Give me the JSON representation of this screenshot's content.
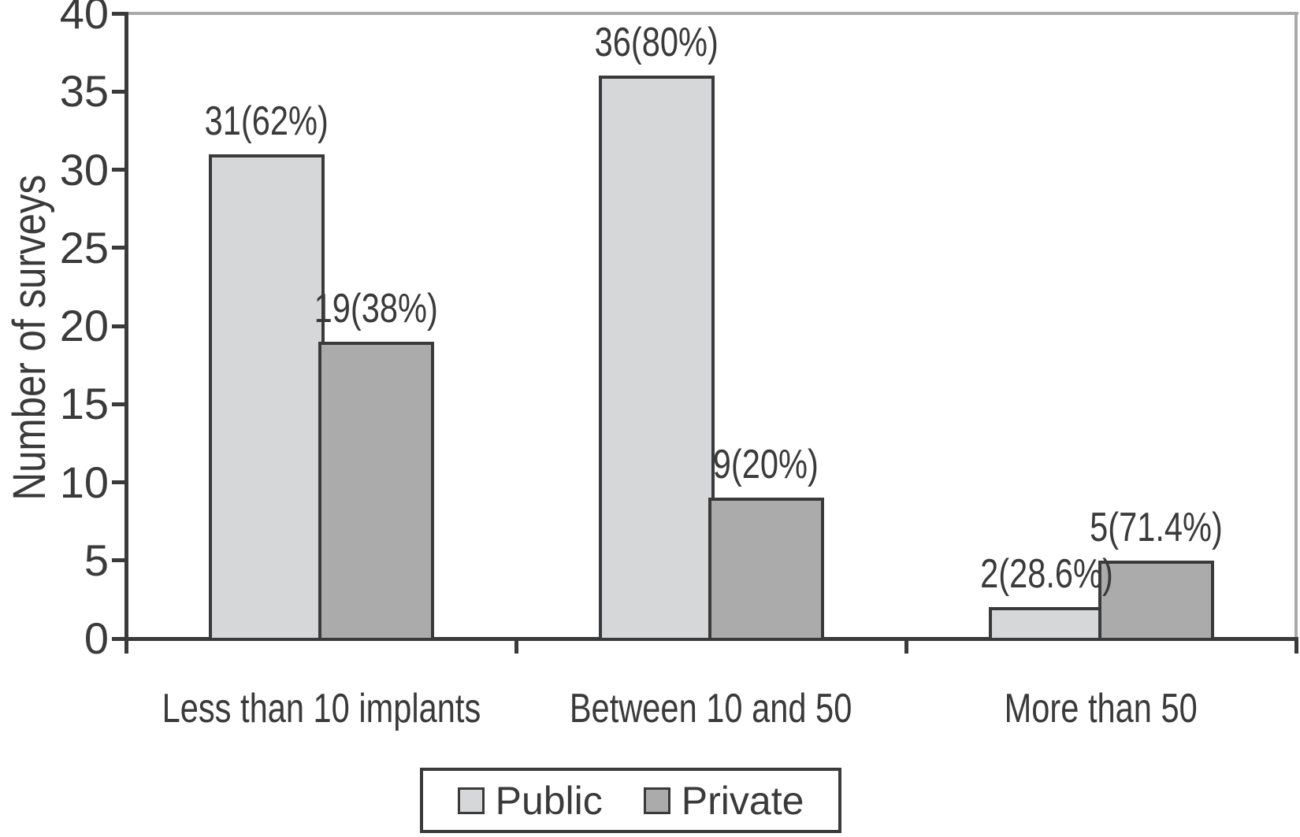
{
  "chart_data": {
    "type": "bar",
    "title": "",
    "xlabel": "",
    "ylabel": "Number of surveys",
    "categories": [
      "Less than 10 implants",
      "Between 10 and 50",
      "More than 50"
    ],
    "series": [
      {
        "name": "Public",
        "color": "#d6d7d8",
        "values": [
          31,
          36,
          2
        ],
        "value_labels": [
          "31(62%)",
          "36(80%)",
          "2(28.6%)"
        ]
      },
      {
        "name": "Private",
        "color": "#ababac",
        "values": [
          19,
          9,
          5
        ],
        "value_labels": [
          "19(38%)",
          "9(20%)",
          "5(71.4%)"
        ]
      }
    ],
    "ylim": [
      0,
      40
    ],
    "yticks": [
      0,
      5,
      10,
      15,
      20,
      25,
      30,
      35,
      40
    ],
    "grid": false,
    "legend_position": "bottom-center",
    "axis_color": "#3a3a3a",
    "frame_color": "#a9a9a9"
  }
}
